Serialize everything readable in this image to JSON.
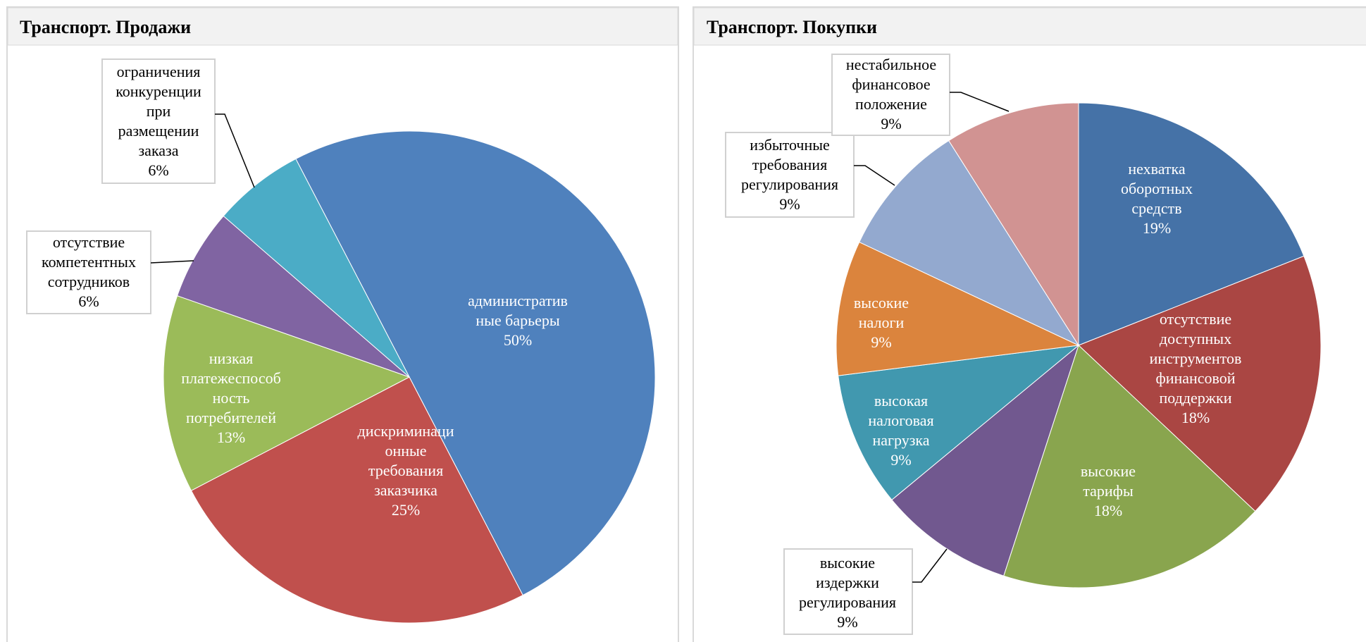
{
  "chart_data": [
    {
      "type": "pie",
      "title": "Транспорт. Продажи",
      "categories": [
        "административные барьеры",
        "дискриминационные требования заказчика",
        "низкая платежеспособность потребителей",
        "отсутствие компетентных сотрудников",
        "ограничения конкуренции при размещении заказа"
      ],
      "values": [
        50,
        25,
        13,
        6,
        6
      ],
      "value_labels": [
        "50%",
        "25%",
        "13%",
        "6%",
        "6%"
      ],
      "colors": [
        "#4f81bd",
        "#c0504d",
        "#9bbb59",
        "#8064a2",
        "#4bacc6"
      ]
    },
    {
      "type": "pie",
      "title": "Транспорт. Покупки",
      "categories": [
        "нехватка оборотных средств",
        "отсутствие доступных инструментов финансовой поддержки",
        "высокие тарифы",
        "высокие издержки регулирования",
        "высокая налоговая нагрузка",
        "высокие налоги",
        "избыточные требования регулирования",
        "нестабильное финансовое положение"
      ],
      "values": [
        19,
        18,
        18,
        9,
        9,
        9,
        9,
        9
      ],
      "value_labels": [
        "19%",
        "18%",
        "18%",
        "9%",
        "9%",
        "9%",
        "9%",
        "9%"
      ],
      "colors": [
        "#4572a7",
        "#aa4643",
        "#89a54e",
        "#71588f",
        "#4198af",
        "#db843d",
        "#93a9cf",
        "#d19392"
      ]
    }
  ]
}
